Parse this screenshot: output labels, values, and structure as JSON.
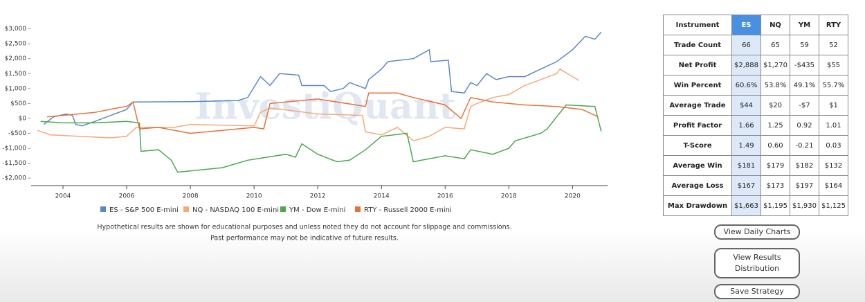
{
  "chart_data": {
    "type": "line",
    "watermark": "InvestiQuant",
    "xlim": [
      2003,
      2021.1
    ],
    "ylim": [
      -2250,
      3500
    ],
    "xticks": [
      2004,
      2006,
      2008,
      2010,
      2012,
      2014,
      2016,
      2018,
      2020
    ],
    "yticks": [
      {
        "value": 3000,
        "label": "$3,000"
      },
      {
        "value": 2500,
        "label": "$2,500"
      },
      {
        "value": 2000,
        "label": "$2,000"
      },
      {
        "value": 1500,
        "label": "$1,500"
      },
      {
        "value": 1000,
        "label": "$1,000"
      },
      {
        "value": 500,
        "label": "$500"
      },
      {
        "value": 0,
        "label": "$0"
      },
      {
        "value": -500,
        "label": "-$500"
      },
      {
        "value": -1000,
        "label": "-$1,000"
      },
      {
        "value": -1500,
        "label": "-$1,500"
      },
      {
        "value": -2000,
        "label": "-$2,000"
      }
    ],
    "series": [
      {
        "name": "ES - S&P 500 E-mini",
        "color": "#5b87c9",
        "x": [
          2003.4,
          2003.7,
          2004.1,
          2004.3,
          2004.4,
          2004.6,
          2005,
          2005.5,
          2006,
          2006.2,
          2008,
          2009.5,
          2009.8,
          2010.2,
          2010.5,
          2010.8,
          2011.4,
          2011.5,
          2012.2,
          2012.4,
          2012.8,
          2013,
          2013.5,
          2013.6,
          2014,
          2014.2,
          2015,
          2015.5,
          2015.55,
          2016.1,
          2016.2,
          2016.6,
          2016.8,
          2017,
          2017.3,
          2017.6,
          2018,
          2018.5,
          2019.5,
          2020,
          2020.4,
          2020.7,
          2020.9
        ],
        "values": [
          -200,
          50,
          150,
          100,
          -200,
          -250,
          -100,
          100,
          300,
          550,
          560,
          600,
          700,
          1400,
          1100,
          1500,
          1450,
          1100,
          1100,
          900,
          1000,
          1200,
          1000,
          1300,
          1650,
          1900,
          2000,
          2300,
          1900,
          1950,
          900,
          850,
          1200,
          1100,
          1500,
          1300,
          1400,
          1400,
          1900,
          2300,
          2750,
          2650,
          2888
        ]
      },
      {
        "name": "NQ - NASDAQ 100 E-mini",
        "color": "#f7a878",
        "x": [
          2003.2,
          2003.6,
          2004.5,
          2005.5,
          2006,
          2006.3,
          2007.5,
          2008,
          2010,
          2010.2,
          2010.5,
          2012,
          2013.4,
          2013.5,
          2014,
          2014.5,
          2015,
          2015.5,
          2016,
          2016.6,
          2016.8,
          2017,
          2017.5,
          2018,
          2018.5,
          2019,
          2019.5,
          2019.6,
          2020,
          2020.2
        ],
        "values": [
          -400,
          -550,
          -600,
          -650,
          -600,
          -300,
          -300,
          -200,
          -250,
          200,
          350,
          150,
          100,
          -450,
          -550,
          -300,
          -750,
          -600,
          -300,
          -350,
          400,
          500,
          700,
          800,
          1100,
          1300,
          1500,
          1650,
          1400,
          1270
        ]
      },
      {
        "name": "YM - Dow E-mini",
        "color": "#4aa84a",
        "x": [
          2003.3,
          2004,
          2005,
          2006,
          2006.4,
          2006.45,
          2007,
          2007.4,
          2007.6,
          2009,
          2009.8,
          2011,
          2011.3,
          2011.5,
          2012,
          2012.6,
          2013,
          2013.5,
          2014,
          2014.8,
          2015,
          2016,
          2016.6,
          2016.8,
          2017.5,
          2018,
          2018.2,
          2019,
          2019.2,
          2019.8,
          2020.7,
          2020.9
        ],
        "values": [
          -100,
          -150,
          -150,
          -100,
          -150,
          -1100,
          -1050,
          -1400,
          -1800,
          -1650,
          -1400,
          -1200,
          -1300,
          -850,
          -1200,
          -1450,
          -1400,
          -1050,
          -600,
          -500,
          -1450,
          -1250,
          -1350,
          -1050,
          -1200,
          -1000,
          -750,
          -500,
          -350,
          450,
          400,
          -435
        ]
      },
      {
        "name": "RTY - Russell 2000 E-mini",
        "color": "#e8703a",
        "x": [
          2003.5,
          2004,
          2005,
          2005.7,
          2006,
          2006.2,
          2006.4,
          2007,
          2008,
          2009,
          2010,
          2010.3,
          2010.5,
          2012,
          2013.5,
          2013.6,
          2014.5,
          2015,
          2016,
          2016.5,
          2016.8,
          2017.5,
          2018.5,
          2019.5,
          2020.3,
          2020.8
        ],
        "values": [
          50,
          100,
          200,
          350,
          400,
          550,
          -350,
          -300,
          -500,
          -400,
          -300,
          -350,
          500,
          650,
          400,
          850,
          850,
          700,
          450,
          0,
          700,
          550,
          450,
          400,
          300,
          55
        ]
      }
    ]
  },
  "note": [
    "Hypothetical results are shown for educational purposes and unless noted they do not account for slippage and commissions.",
    "Past performance may not be indicative of future results."
  ],
  "table": {
    "header": [
      "Instrument",
      "ES",
      "NQ",
      "YM",
      "RTY"
    ],
    "rows": [
      [
        "Trade Count",
        "66",
        "65",
        "59",
        "52"
      ],
      [
        "Net Profit",
        "$2,888",
        "$1,270",
        "-$435",
        "$55"
      ],
      [
        "Win Percent",
        "60.6%",
        "53.8%",
        "49.1%",
        "55.7%"
      ],
      [
        "Average Trade",
        "$44",
        "$20",
        "-$7",
        "$1"
      ],
      [
        "Profit Factor",
        "1.66",
        "1.25",
        "0.92",
        "1.01"
      ],
      [
        "T-Score",
        "1.49",
        "0.60",
        "-0.21",
        "0.03"
      ],
      [
        "Average Win",
        "$181",
        "$179",
        "$182",
        "$132"
      ],
      [
        "Average Loss",
        "$167",
        "$173",
        "$197",
        "$164"
      ],
      [
        "Max Drawdown",
        "$1,663",
        "$1,195",
        "$1,930",
        "$1,125"
      ]
    ]
  },
  "buttons": [
    "View Daily Charts",
    "View Results Distribution",
    "Save Strategy"
  ]
}
